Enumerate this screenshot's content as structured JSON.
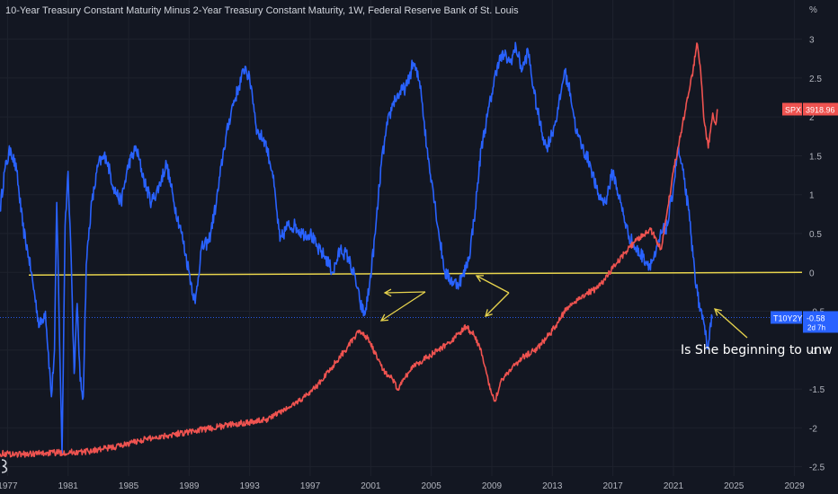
{
  "chart_data": {
    "type": "line",
    "title": "10-Year Treasury Constant Maturity Minus 2-Year Treasury Constant Maturity, 1W, Federal Reserve Bank of St. Louis",
    "unit_label": "%",
    "xlim": [
      1976.5,
      2029.5
    ],
    "ylim": [
      -2.62,
      3.25
    ],
    "x_ticks": [
      "1977",
      "1981",
      "1985",
      "1989",
      "1993",
      "1997",
      "2001",
      "2005",
      "2009",
      "2013",
      "2017",
      "2021",
      "2025",
      "2029"
    ],
    "y_ticks": [
      "3",
      "2.5",
      "2",
      "1.5",
      "1",
      "0.5",
      "0",
      "-0.5",
      "-1",
      "-1.5",
      "-2",
      "-2.5"
    ],
    "reference_line": {
      "y": 0,
      "color": "#e8d44d"
    },
    "series": [
      {
        "name": "T10Y2Y",
        "color": "#2962ff",
        "badge_label": "T10Y2Y",
        "badge_value": "-0.58",
        "badge_sub": "2d 7h",
        "last_value": -0.58,
        "points": [
          [
            1976.5,
            0.8
          ],
          [
            1976.8,
            1.3
          ],
          [
            1977.2,
            1.6
          ],
          [
            1977.6,
            1.3
          ],
          [
            1978.0,
            0.6
          ],
          [
            1978.4,
            0.2
          ],
          [
            1978.8,
            -0.3
          ],
          [
            1979.1,
            -0.7
          ],
          [
            1979.5,
            -0.5
          ],
          [
            1979.9,
            -1.6
          ],
          [
            1980.1,
            -1.0
          ],
          [
            1980.25,
            0.9
          ],
          [
            1980.4,
            -0.5
          ],
          [
            1980.6,
            -2.35
          ],
          [
            1980.8,
            0.6
          ],
          [
            1981.0,
            1.3
          ],
          [
            1981.2,
            0.2
          ],
          [
            1981.4,
            -1.3
          ],
          [
            1981.6,
            -0.4
          ],
          [
            1981.8,
            -1.4
          ],
          [
            1982.0,
            -1.6
          ],
          [
            1982.2,
            0.1
          ],
          [
            1982.5,
            0.8
          ],
          [
            1983.0,
            1.4
          ],
          [
            1983.5,
            1.5
          ],
          [
            1984.0,
            1.1
          ],
          [
            1984.5,
            0.9
          ],
          [
            1985.0,
            1.4
          ],
          [
            1985.5,
            1.6
          ],
          [
            1986.0,
            1.2
          ],
          [
            1986.5,
            0.9
          ],
          [
            1987.0,
            1.1
          ],
          [
            1987.5,
            1.4
          ],
          [
            1988.0,
            0.9
          ],
          [
            1988.5,
            0.5
          ],
          [
            1989.0,
            0.0
          ],
          [
            1989.4,
            -0.4
          ],
          [
            1989.8,
            0.3
          ],
          [
            1990.3,
            0.4
          ],
          [
            1990.8,
            0.9
          ],
          [
            1991.3,
            1.6
          ],
          [
            1991.8,
            2.1
          ],
          [
            1992.3,
            2.4
          ],
          [
            1992.7,
            2.65
          ],
          [
            1993.1,
            2.4
          ],
          [
            1993.5,
            1.8
          ],
          [
            1994.0,
            1.7
          ],
          [
            1994.5,
            1.3
          ],
          [
            1995.0,
            0.4
          ],
          [
            1995.5,
            0.6
          ],
          [
            1996.0,
            0.6
          ],
          [
            1996.5,
            0.5
          ],
          [
            1997.0,
            0.5
          ],
          [
            1997.5,
            0.3
          ],
          [
            1998.0,
            0.2
          ],
          [
            1998.5,
            0.0
          ],
          [
            1999.0,
            0.3
          ],
          [
            1999.5,
            0.2
          ],
          [
            2000.0,
            -0.1
          ],
          [
            2000.3,
            -0.4
          ],
          [
            2000.6,
            -0.55
          ],
          [
            2000.9,
            -0.2
          ],
          [
            2001.3,
            0.5
          ],
          [
            2001.7,
            1.4
          ],
          [
            2002.1,
            1.9
          ],
          [
            2002.5,
            2.2
          ],
          [
            2002.9,
            2.3
          ],
          [
            2003.4,
            2.4
          ],
          [
            2003.8,
            2.7
          ],
          [
            2004.3,
            2.4
          ],
          [
            2004.7,
            1.6
          ],
          [
            2005.1,
            1.1
          ],
          [
            2005.5,
            0.5
          ],
          [
            2005.9,
            0.0
          ],
          [
            2006.3,
            -0.1
          ],
          [
            2006.7,
            -0.15
          ],
          [
            2007.1,
            -0.05
          ],
          [
            2007.5,
            0.2
          ],
          [
            2007.9,
            0.8
          ],
          [
            2008.3,
            1.6
          ],
          [
            2008.7,
            2.0
          ],
          [
            2009.0,
            2.3
          ],
          [
            2009.4,
            2.7
          ],
          [
            2009.8,
            2.8
          ],
          [
            2010.2,
            2.7
          ],
          [
            2010.6,
            2.9
          ],
          [
            2011.0,
            2.6
          ],
          [
            2011.4,
            2.85
          ],
          [
            2011.8,
            2.3
          ],
          [
            2012.2,
            1.9
          ],
          [
            2012.6,
            1.6
          ],
          [
            2013.0,
            1.8
          ],
          [
            2013.4,
            2.1
          ],
          [
            2013.8,
            2.6
          ],
          [
            2014.2,
            2.3
          ],
          [
            2014.6,
            1.8
          ],
          [
            2015.0,
            1.6
          ],
          [
            2015.5,
            1.4
          ],
          [
            2016.0,
            1.0
          ],
          [
            2016.5,
            0.9
          ],
          [
            2017.0,
            1.3
          ],
          [
            2017.5,
            0.9
          ],
          [
            2018.0,
            0.5
          ],
          [
            2018.5,
            0.3
          ],
          [
            2019.0,
            0.2
          ],
          [
            2019.4,
            0.1
          ],
          [
            2019.8,
            0.2
          ],
          [
            2020.2,
            0.5
          ],
          [
            2020.6,
            0.6
          ],
          [
            2021.0,
            1.1
          ],
          [
            2021.3,
            1.6
          ],
          [
            2021.7,
            1.2
          ],
          [
            2022.0,
            0.8
          ],
          [
            2022.3,
            0.2
          ],
          [
            2022.6,
            -0.3
          ],
          [
            2022.9,
            -0.6
          ],
          [
            2023.1,
            -0.8
          ],
          [
            2023.3,
            -0.95
          ],
          [
            2023.45,
            -0.65
          ],
          [
            2023.6,
            -0.58
          ]
        ]
      },
      {
        "name": "SPX",
        "color": "#ef5350",
        "badge_label": "SPX",
        "badge_value": "3918.96",
        "last_value": 3918.96,
        "points": [
          [
            1976.5,
            -2.33
          ],
          [
            1978.0,
            -2.34
          ],
          [
            1980.0,
            -2.32
          ],
          [
            1982.0,
            -2.31
          ],
          [
            1984.0,
            -2.25
          ],
          [
            1986.0,
            -2.15
          ],
          [
            1988.0,
            -2.08
          ],
          [
            1990.0,
            -2.02
          ],
          [
            1992.0,
            -1.95
          ],
          [
            1994.0,
            -1.9
          ],
          [
            1995.5,
            -1.75
          ],
          [
            1996.5,
            -1.62
          ],
          [
            1997.5,
            -1.45
          ],
          [
            1998.5,
            -1.2
          ],
          [
            1999.5,
            -0.95
          ],
          [
            2000.3,
            -0.75
          ],
          [
            2000.8,
            -0.85
          ],
          [
            2001.3,
            -1.05
          ],
          [
            2001.8,
            -1.25
          ],
          [
            2002.3,
            -1.35
          ],
          [
            2002.8,
            -1.5
          ],
          [
            2003.3,
            -1.35
          ],
          [
            2003.8,
            -1.2
          ],
          [
            2004.5,
            -1.12
          ],
          [
            2005.5,
            -1.0
          ],
          [
            2006.5,
            -0.85
          ],
          [
            2007.3,
            -0.7
          ],
          [
            2007.8,
            -0.8
          ],
          [
            2008.3,
            -1.0
          ],
          [
            2008.8,
            -1.45
          ],
          [
            2009.2,
            -1.65
          ],
          [
            2009.6,
            -1.4
          ],
          [
            2010.2,
            -1.25
          ],
          [
            2011.0,
            -1.1
          ],
          [
            2012.0,
            -0.98
          ],
          [
            2013.0,
            -0.75
          ],
          [
            2014.0,
            -0.45
          ],
          [
            2015.0,
            -0.3
          ],
          [
            2016.0,
            -0.2
          ],
          [
            2017.0,
            0.05
          ],
          [
            2018.0,
            0.3
          ],
          [
            2018.8,
            0.45
          ],
          [
            2019.5,
            0.55
          ],
          [
            2020.2,
            0.3
          ],
          [
            2020.6,
            0.8
          ],
          [
            2021.0,
            1.3
          ],
          [
            2021.5,
            1.8
          ],
          [
            2022.0,
            2.3
          ],
          [
            2022.3,
            2.6
          ],
          [
            2022.55,
            2.95
          ],
          [
            2022.8,
            2.6
          ],
          [
            2023.0,
            2.0
          ],
          [
            2023.3,
            1.6
          ],
          [
            2023.6,
            2.05
          ],
          [
            2023.8,
            1.9
          ],
          [
            2023.9,
            2.1
          ]
        ]
      }
    ],
    "annotation": "Is She beginning to unw"
  }
}
